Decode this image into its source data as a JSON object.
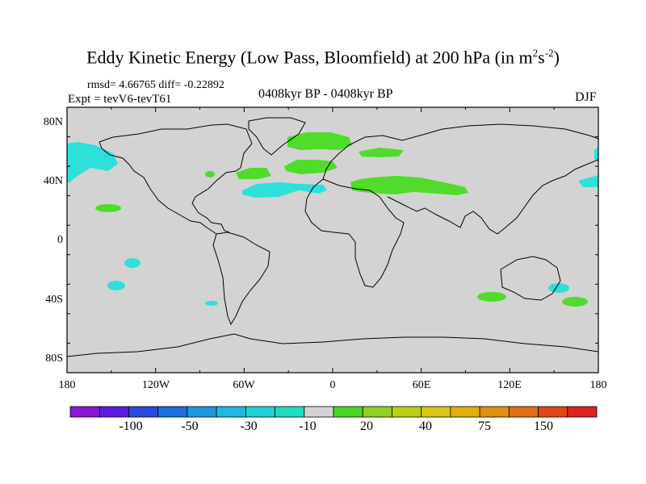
{
  "header": {
    "title_main": "Eddy Kinetic Energy (Low Pass, Bloomfield) at 200 hPa (in m",
    "title_sup1": "2",
    "title_mid": "s",
    "title_sup2": "-2",
    "title_end": ")",
    "rmsd": "rmsd= 4.66765 diff= -0.22892",
    "expt": "Expt = tevV6-tevT61",
    "period": "0408kyr BP - 0408kyr BP",
    "season": "DJF"
  },
  "map": {
    "ocean_land_color": "#d3d3d3",
    "lat_labels": [
      "80N",
      "40N",
      "0",
      "40S",
      "80S"
    ],
    "lon_labels": [
      "180",
      "120W",
      "60W",
      "0",
      "60E",
      "120E",
      "180"
    ]
  },
  "colorbar": {
    "colors": [
      "#8a17d8",
      "#5a1ae0",
      "#2a48e2",
      "#1a70e0",
      "#1c98e0",
      "#20b8e0",
      "#20d0d8",
      "#20dcc0",
      "#d3d3d3",
      "#48d820",
      "#90d020",
      "#b8d018",
      "#d8c818",
      "#e0b010",
      "#e09010",
      "#e07010",
      "#e04818",
      "#e02020"
    ],
    "labels": [
      "-100",
      "-50",
      "-30",
      "-10",
      "20",
      "40",
      "75",
      "150"
    ],
    "negative_color": "#2ee0da",
    "positive_color": "#4fdc2a"
  }
}
